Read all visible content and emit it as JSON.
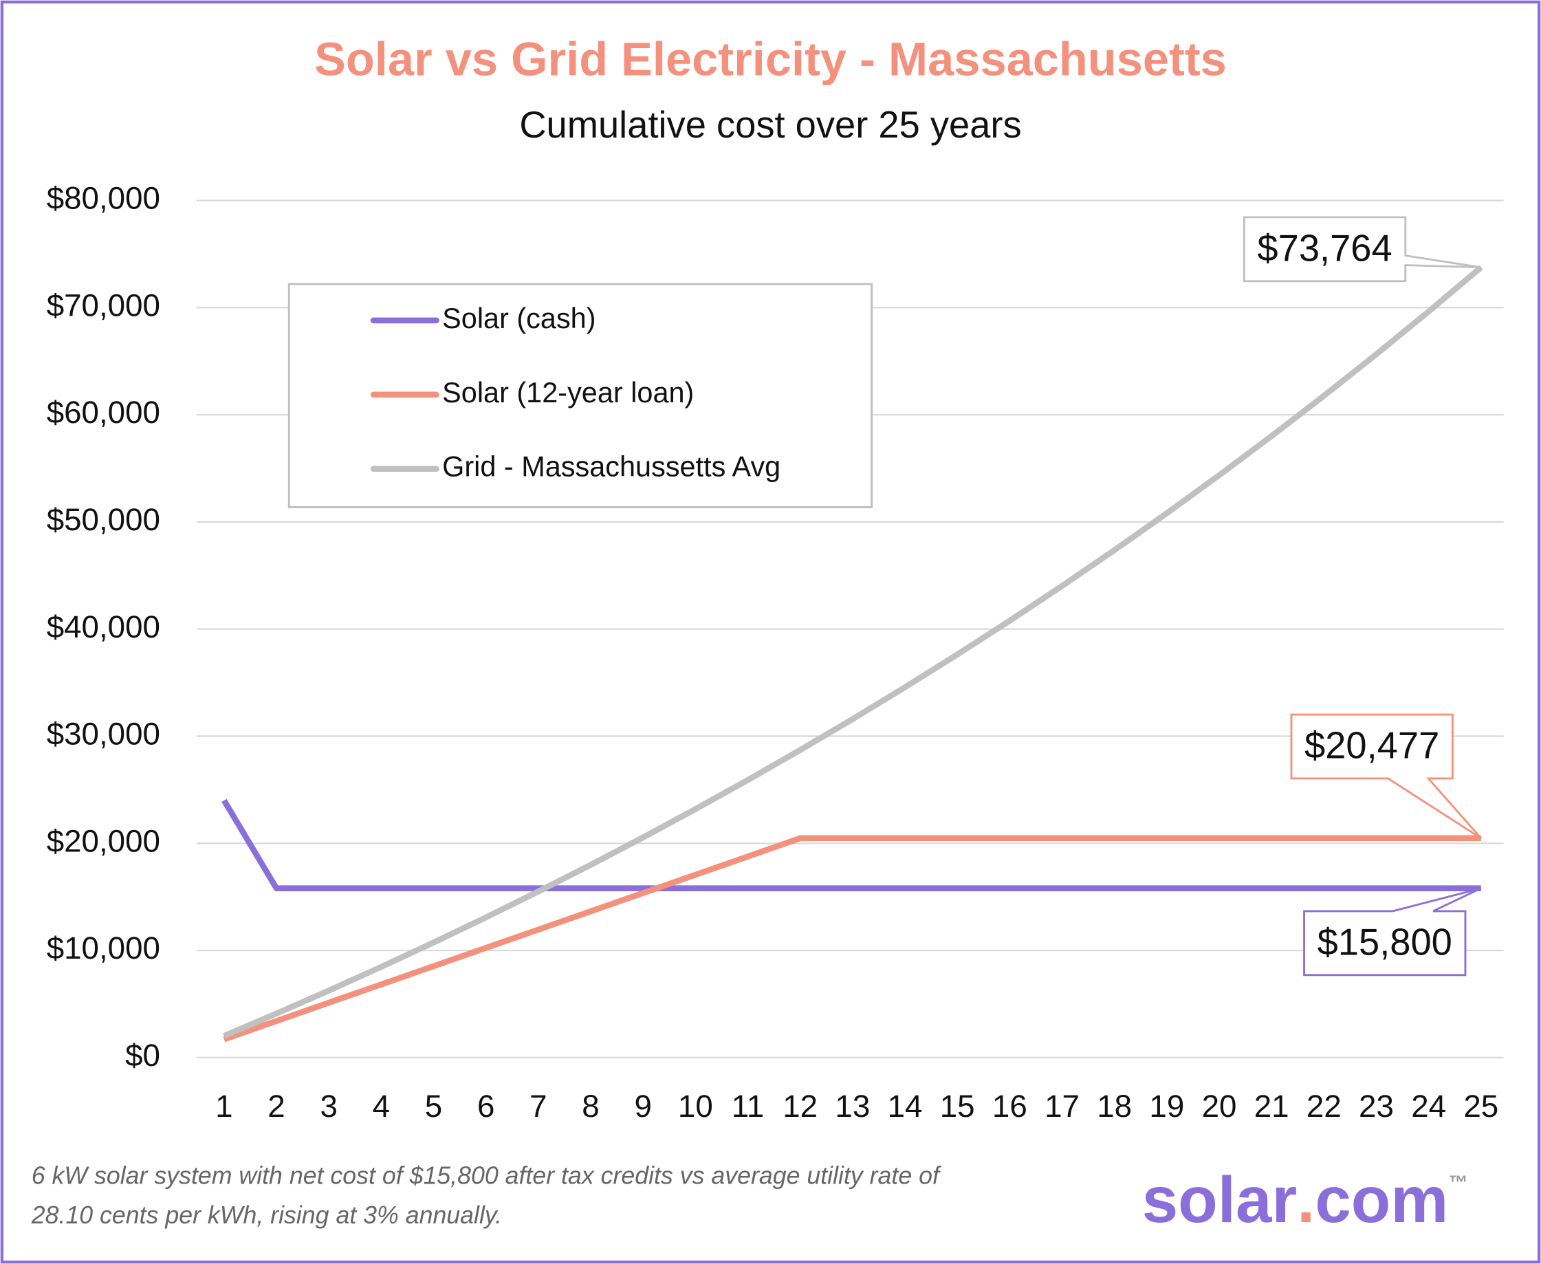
{
  "chart_data": {
    "type": "line",
    "title": "Solar vs Grid Electricity - Massachusetts",
    "subtitle": "Cumulative cost over 25 years",
    "categories": [
      "1",
      "2",
      "3",
      "4",
      "5",
      "6",
      "7",
      "8",
      "9",
      "10",
      "11",
      "12",
      "13",
      "14",
      "15",
      "16",
      "17",
      "18",
      "19",
      "20",
      "21",
      "22",
      "23",
      "24",
      "25"
    ],
    "ylim": [
      0,
      80000
    ],
    "yticks": [
      {
        "value": 0,
        "label": "$0"
      },
      {
        "value": 10000,
        "label": "$10,000"
      },
      {
        "value": 20000,
        "label": "$20,000"
      },
      {
        "value": 30000,
        "label": "$30,000"
      },
      {
        "value": 40000,
        "label": "$40,000"
      },
      {
        "value": 50000,
        "label": "$50,000"
      },
      {
        "value": 60000,
        "label": "$60,000"
      },
      {
        "value": 70000,
        "label": "$70,000"
      },
      {
        "value": 80000,
        "label": "$80,000"
      }
    ],
    "grid": true,
    "legend": "upper-left",
    "series": [
      {
        "name": "Solar (cash)",
        "color": "#8a6fdb",
        "values": [
          24000,
          15800,
          15800,
          15800,
          15800,
          15800,
          15800,
          15800,
          15800,
          15800,
          15800,
          15800,
          15800,
          15800,
          15800,
          15800,
          15800,
          15800,
          15800,
          15800,
          15800,
          15800,
          15800,
          15800,
          15800
        ],
        "value_labels": [
          null,
          null,
          null,
          null,
          null,
          null,
          null,
          null,
          null,
          null,
          null,
          null,
          null,
          null,
          null,
          null,
          null,
          null,
          null,
          null,
          null,
          null,
          null,
          null,
          "$15,800"
        ]
      },
      {
        "name": "Solar (12-year loan)",
        "color": "#f4917d",
        "values": [
          1706,
          3413,
          5119,
          6826,
          8532,
          10239,
          11945,
          13651,
          15358,
          17064,
          18771,
          20477,
          20477,
          20477,
          20477,
          20477,
          20477,
          20477,
          20477,
          20477,
          20477,
          20477,
          20477,
          20477,
          20477
        ],
        "value_labels": [
          null,
          null,
          null,
          null,
          null,
          null,
          null,
          null,
          null,
          null,
          null,
          null,
          null,
          null,
          null,
          null,
          null,
          null,
          null,
          null,
          null,
          null,
          null,
          null,
          "$20,477"
        ]
      },
      {
        "name": "Grid - Massachussetts Avg",
        "color": "#c0c0c0",
        "values": [
          2023,
          4107,
          6253,
          8464,
          10740,
          13085,
          15500,
          17988,
          20552,
          23192,
          25911,
          28710,
          31595,
          34565,
          37626,
          40778,
          44025,
          47367,
          50812,
          54358,
          58012,
          61776,
          65652,
          69644,
          73764
        ],
        "value_labels": [
          null,
          null,
          null,
          null,
          null,
          null,
          null,
          null,
          null,
          null,
          null,
          null,
          null,
          null,
          null,
          null,
          null,
          null,
          null,
          null,
          null,
          null,
          null,
          null,
          "$73,764"
        ]
      }
    ],
    "footnote": [
      "6 kW solar system with net cost of $15,800 after tax credits vs average utility rate of",
      "28.10 cents per kWh, rising at 3% annually."
    ],
    "logo": [
      "solar",
      ".",
      "com",
      "™"
    ]
  }
}
